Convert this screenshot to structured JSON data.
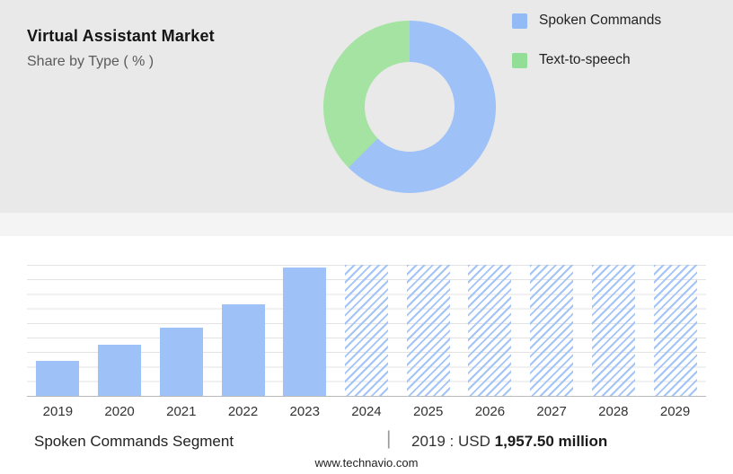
{
  "header": {
    "title": "Virtual Assistant Market",
    "subtitle": "Share by Type ( % )"
  },
  "colors": {
    "top_bg": "#e9e9e9",
    "series_blue": "#9ec1f7",
    "series_green": "#a5e3a3"
  },
  "legend": [
    {
      "label": "Spoken Commands",
      "color": "#92bbf6"
    },
    {
      "label": "Text-to-speech",
      "color": "#92de96"
    }
  ],
  "chart_data": [
    {
      "type": "pie",
      "title": "Virtual Assistant Market - Share by Type ( % )",
      "labels": [
        "Spoken Commands",
        "Text-to-speech"
      ],
      "values": [
        62.5,
        37.5
      ],
      "colors": [
        "#9ec1f7",
        "#a5e3a3"
      ],
      "donut": true,
      "legend_position": "right",
      "note": "Percent shares estimated from donut arc angles; no numeric labels shown in image."
    },
    {
      "type": "bar",
      "categories": [
        "2019",
        "2020",
        "2021",
        "2022",
        "2023",
        "2024",
        "2025",
        "2026",
        "2027",
        "2028",
        "2029"
      ],
      "values_relative": [
        27,
        39,
        52,
        70,
        98,
        100,
        100,
        100,
        100,
        100,
        100
      ],
      "forecast": [
        false,
        false,
        false,
        false,
        false,
        true,
        true,
        true,
        true,
        true,
        true
      ],
      "series_name": "Spoken Commands Segment",
      "annotation": "2019 : USD 1,957.50 million",
      "ylabel": "",
      "xlabel": "",
      "grid": true,
      "note": "No y-axis scale shown; values are relative bar heights (% of tallest). 2024-2029 are hatched forecast bars."
    }
  ],
  "footer": {
    "segment_label": "Spoken Commands Segment",
    "divider": "|",
    "value_prefix": "2019 : USD ",
    "value_bold": "1,957.50 million",
    "website": "www.technavio.com"
  }
}
